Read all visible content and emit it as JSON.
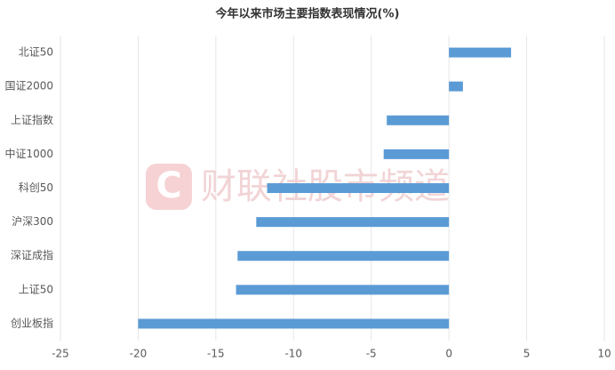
{
  "chart_data": {
    "type": "hbar",
    "title": "今年以来市场主要指数表现情况(%)",
    "categories": [
      "北证50",
      "国证2000",
      "上证指数",
      "中证1000",
      "科创50",
      "沪深300",
      "深证成指",
      "上证50",
      "创业板指"
    ],
    "values": [
      4.0,
      0.9,
      -4.0,
      -4.2,
      -11.7,
      -12.4,
      -13.6,
      -13.7,
      -20.0
    ],
    "color": "#5b9bd5",
    "xlim": [
      -25,
      10
    ],
    "xticks": [
      -25,
      -20,
      -15,
      -10,
      -5,
      0,
      5,
      10
    ],
    "grid": true
  },
  "watermark": "财联社股市频道"
}
